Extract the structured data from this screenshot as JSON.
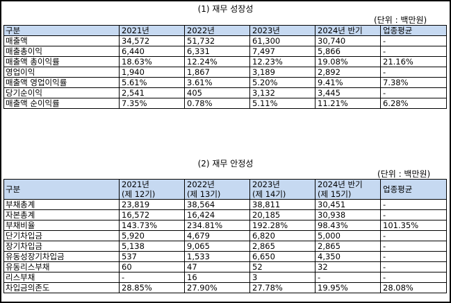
{
  "growth": {
    "title": "(1) 재무 성장성",
    "unit": "(단위 : 백만원)",
    "headers": [
      "구분",
      "2021년",
      "2022년",
      "2023년",
      "2024년 반기",
      "업종평균"
    ],
    "rows": [
      {
        "label": "매출액",
        "values": [
          "34,572",
          "51,732",
          "61,300",
          "30,740",
          "-"
        ]
      },
      {
        "label": "매출총이익",
        "values": [
          "6,440",
          "6,331",
          "7,497",
          "5,866",
          "-"
        ]
      },
      {
        "label": "매출액 총이익률",
        "values": [
          "18.63%",
          "12.24%",
          "12.23%",
          "19.08%",
          "21.16%"
        ]
      },
      {
        "label": "영업이익",
        "values": [
          "1,940",
          "1,867",
          "3,189",
          "2,892",
          "-"
        ]
      },
      {
        "label": "매출액 영업이익률",
        "values": [
          "5.61%",
          "3.61%",
          "5.20%",
          "9.41%",
          "7.38%"
        ]
      },
      {
        "label": "당기순이익",
        "values": [
          "2,541",
          "405",
          "3,132",
          "3,445",
          "-"
        ]
      },
      {
        "label": "매출액 순이익률",
        "values": [
          "7.35%",
          "0.78%",
          "5.11%",
          "11.21%",
          "6.28%"
        ]
      }
    ]
  },
  "stability": {
    "title": "(2) 재무 안정성",
    "unit": "(단위 : 백만원)",
    "headers": {
      "label": "구분",
      "years": [
        {
          "year": "2021년",
          "period": "(제 12기)"
        },
        {
          "year": "2022년",
          "period": "(제 13기)"
        },
        {
          "year": "2023년",
          "period": "(제 14기)"
        },
        {
          "year": "2024년 반기",
          "period": "(제 15기)"
        }
      ],
      "avg": "업종평균"
    },
    "rows": [
      {
        "label": "부채총계",
        "values": [
          "23,819",
          "38,564",
          "38,811",
          "30,451",
          "-"
        ]
      },
      {
        "label": "자본총계",
        "values": [
          "16,572",
          "16,424",
          "20,185",
          "30,938",
          "-"
        ]
      },
      {
        "label": "부채비율",
        "values": [
          "143.73%",
          "234.81%",
          "192.28%",
          "98.43%",
          "101.35%"
        ]
      },
      {
        "label": "단기차입금",
        "values": [
          "5,920",
          "4,679",
          "6,820",
          "5,000",
          "-"
        ]
      },
      {
        "label": "장기차입금",
        "values": [
          "5,138",
          "9,065",
          "2,865",
          "2,865",
          "-"
        ]
      },
      {
        "label": "유동성장기차입금",
        "values": [
          "537",
          "1,533",
          "6,650",
          "4,350",
          "-"
        ]
      },
      {
        "label": "유동리스부채",
        "values": [
          "60",
          "47",
          "52",
          "32",
          "-"
        ]
      },
      {
        "label": "리스부채",
        "values": [
          "-",
          "16",
          "3",
          "-",
          "-"
        ]
      },
      {
        "label": "차입금의존도",
        "values": [
          "28.85%",
          "27.90%",
          "27.78%",
          "19.95%",
          "28.08%"
        ]
      }
    ]
  }
}
